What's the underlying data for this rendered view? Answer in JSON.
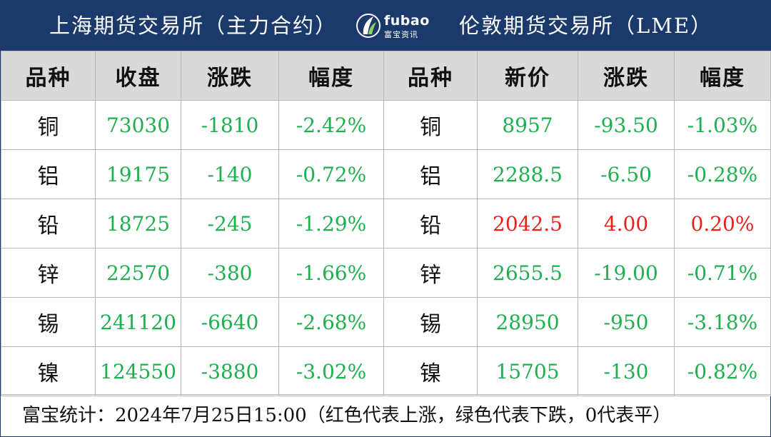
{
  "header": {
    "left_title": "上海期货交易所（主力合约）",
    "right_title": "伦敦期货交易所（LME）",
    "logo_brand": "fubao",
    "logo_sub": "富宝资讯"
  },
  "columns": [
    "品种",
    "收盘",
    "涨跌",
    "幅度",
    "品种",
    "新价",
    "涨跌",
    "幅度"
  ],
  "colors": {
    "up": "#e8211c",
    "down": "#1eb04f",
    "banner": "#1b3a6b",
    "header_bg": "#d9d9d9"
  },
  "rows": [
    {
      "shfe_name": "铜",
      "shfe_close": "73030",
      "shfe_change": "-1810",
      "shfe_pct": "-2.42%",
      "lme_name": "铜",
      "lme_price": "8957",
      "lme_change": "-93.50",
      "lme_pct": "-1.03%",
      "shfe_dir": "down",
      "lme_dir": "down"
    },
    {
      "shfe_name": "铝",
      "shfe_close": "19175",
      "shfe_change": "-140",
      "shfe_pct": "-0.72%",
      "lme_name": "铝",
      "lme_price": "2288.5",
      "lme_change": "-6.50",
      "lme_pct": "-0.28%",
      "shfe_dir": "down",
      "lme_dir": "down"
    },
    {
      "shfe_name": "铅",
      "shfe_close": "18725",
      "shfe_change": "-245",
      "shfe_pct": "-1.29%",
      "lme_name": "铅",
      "lme_price": "2042.5",
      "lme_change": "4.00",
      "lme_pct": "0.20%",
      "shfe_dir": "down",
      "lme_dir": "up"
    },
    {
      "shfe_name": "锌",
      "shfe_close": "22570",
      "shfe_change": "-380",
      "shfe_pct": "-1.66%",
      "lme_name": "锌",
      "lme_price": "2655.5",
      "lme_change": "-19.00",
      "lme_pct": "-0.71%",
      "shfe_dir": "down",
      "lme_dir": "down"
    },
    {
      "shfe_name": "锡",
      "shfe_close": "241120",
      "shfe_change": "-6640",
      "shfe_pct": "-2.68%",
      "lme_name": "锡",
      "lme_price": "28950",
      "lme_change": "-950",
      "lme_pct": "-3.18%",
      "shfe_dir": "down",
      "lme_dir": "down"
    },
    {
      "shfe_name": "镍",
      "shfe_close": "124550",
      "shfe_change": "-3880",
      "shfe_pct": "-3.02%",
      "lme_name": "镍",
      "lme_price": "15705",
      "lme_change": "-130",
      "lme_pct": "-0.82%",
      "shfe_dir": "down",
      "lme_dir": "down"
    }
  ],
  "footer": "富宝统计：2024年7月25日15:00（红色代表上涨，绿色代表下跌，0代表平）"
}
